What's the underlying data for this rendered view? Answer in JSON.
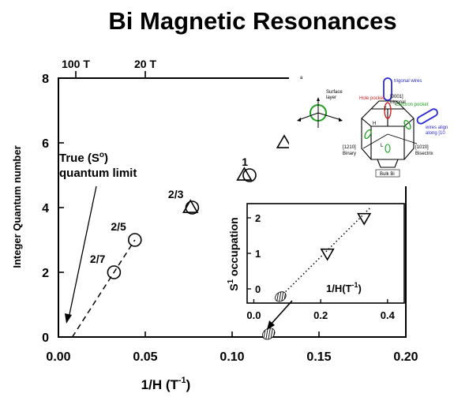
{
  "chart_data": [
    {
      "type": "scatter",
      "title": "Bi Magnetic Resonances",
      "xlabel": "1/H (T",
      "xlabel_sup": "-1",
      "xlabel_end": ")",
      "ylabel": "Integer Quantum number",
      "xlim": [
        0.0,
        0.2
      ],
      "ylim": [
        0,
        8
      ],
      "x_ticks": [
        0.0,
        0.05,
        0.1,
        0.15,
        0.2
      ],
      "x_tick_labels": [
        "0.00",
        "0.05",
        "0.10",
        "0.15",
        "0.20"
      ],
      "y_ticks": [
        0,
        2,
        4,
        6,
        8
      ],
      "y_tick_labels": [
        "0",
        "2",
        "4",
        "6",
        "8"
      ],
      "top_axis": {
        "ticks": [
          {
            "x": 0.01,
            "label": "100 T"
          },
          {
            "x": 0.05,
            "label": "20 T"
          }
        ]
      },
      "grid": false,
      "series": [
        {
          "marker": "circle",
          "points": [
            {
              "x": 0.032,
              "y": 2.0,
              "label": "2/7"
            },
            {
              "x": 0.044,
              "y": 3.0,
              "label": "2/5"
            },
            {
              "x": 0.077,
              "y": 4.0,
              "label": "2/3"
            },
            {
              "x": 0.11,
              "y": 5.0,
              "label": "1"
            }
          ]
        },
        {
          "marker": "triangle-up",
          "points": [
            {
              "x": 0.076,
              "y": 4.0
            },
            {
              "x": 0.107,
              "y": 5.0
            },
            {
              "x": 0.13,
              "y": 6.0
            }
          ]
        },
        {
          "marker": "hatched-ellipse",
          "points": [
            {
              "x": 0.121,
              "y": 0.1
            }
          ]
        }
      ],
      "fit_line": {
        "style": "dashed",
        "from": {
          "x": 0.008,
          "y": 0.0
        },
        "to": {
          "x": 0.044,
          "y": 3.0
        }
      },
      "annotation": {
        "text_lines": [
          "True (S",
          "quantum limit"
        ],
        "superscript": "o",
        "text_line1_end": ")"
      }
    },
    {
      "type": "scatter",
      "xlabel": "1/H(T",
      "xlabel_sup": "-1",
      "xlabel_end": ")",
      "ylabel_prefix": "S",
      "ylabel_sup": "1",
      "ylabel": "occupation",
      "xlim": [
        -0.02,
        0.45
      ],
      "ylim": [
        -0.4,
        2.4
      ],
      "x_ticks": [
        0.0,
        0.2,
        0.4
      ],
      "x_tick_labels": [
        "0.0",
        "0.2",
        "0.4"
      ],
      "y_ticks": [
        0,
        1,
        2
      ],
      "y_tick_labels": [
        "0",
        "1",
        "2"
      ],
      "series": [
        {
          "marker": "triangle-down",
          "points": [
            {
              "x": 0.22,
              "y": 1.0
            },
            {
              "x": 0.33,
              "y": 2.0
            }
          ]
        },
        {
          "marker": "hatched-ellipse",
          "points": [
            {
              "x": 0.08,
              "y": -0.22
            }
          ]
        }
      ],
      "fit_line": {
        "style": "dotted",
        "from": {
          "x": 0.08,
          "y": -0.22
        },
        "to": {
          "x": 0.35,
          "y": 2.3
        }
      }
    }
  ],
  "inset_diagram": {
    "panel_letter": "a",
    "labels": {
      "trigonal_wires": "trigonal wires",
      "surface": "Surface",
      "layer": "layer",
      "axis_0001": "[0001]",
      "trigonal": "trigonal",
      "hole_pocket": "Hole pocket",
      "electron_pocket": "Electron pocket",
      "wires_align": "wires align",
      "along_101": "along [10",
      "h_label": "H",
      "l_label": "L",
      "t_label": "T",
      "axis_1210": "[1",
      "axis_1210_rest": "10]",
      "binary": "Binary",
      "axis_1010": "[10",
      "axis_1010_rest": "0]",
      "bisectrix": "Bisectrix",
      "bulk_bi": "Bulk Bi"
    },
    "colors": {
      "wire": "#2b2bd6",
      "hole": "#d42020",
      "electron": "#1ea01e"
    }
  }
}
